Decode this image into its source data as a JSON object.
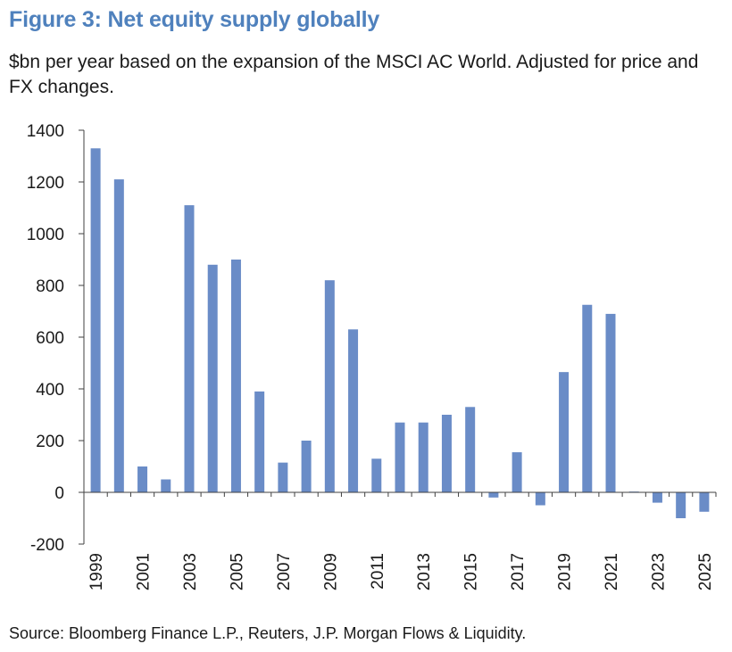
{
  "title": "Figure 3: Net equity supply globally",
  "subtitle": "$bn per year based on the expansion of the MSCI AC World. Adjusted for price and FX changes.",
  "source": "Source: Bloomberg Finance L.P., Reuters, J.P. Morgan Flows & Liquidity.",
  "colors": {
    "bar": "#6a8cc7",
    "axis": "#404040"
  },
  "chart_data": {
    "type": "bar",
    "title": "Figure 3: Net equity supply globally",
    "ylabel": "$bn per year",
    "xlabel": "",
    "ylim": [
      -200,
      1400
    ],
    "yticks": [
      -200,
      0,
      200,
      400,
      600,
      800,
      1000,
      1200,
      1400
    ],
    "ytick_labels": [
      "-200",
      "0",
      "200",
      "400",
      "600",
      "800",
      "1000",
      "1200",
      "1400"
    ],
    "categories": [
      "1999",
      "2000",
      "2001",
      "2002",
      "2003",
      "2004",
      "2005",
      "2006",
      "2007",
      "2008",
      "2009",
      "2010",
      "2011",
      "2012",
      "2013",
      "2014",
      "2015",
      "2016",
      "2017",
      "2018",
      "2019",
      "2020",
      "2021",
      "2022",
      "2023",
      "2024",
      "2025"
    ],
    "xtick_labels": [
      "1999",
      "2001",
      "2003",
      "2005",
      "2007",
      "2009",
      "2011",
      "2013",
      "2015",
      "2017",
      "2019",
      "2021",
      "2023",
      "2025"
    ],
    "values": [
      1330,
      1210,
      100,
      50,
      1110,
      880,
      900,
      390,
      115,
      200,
      820,
      630,
      130,
      270,
      270,
      300,
      330,
      -20,
      155,
      -50,
      465,
      725,
      690,
      3,
      -40,
      -100,
      -75
    ],
    "grid": false,
    "legend": "none"
  }
}
